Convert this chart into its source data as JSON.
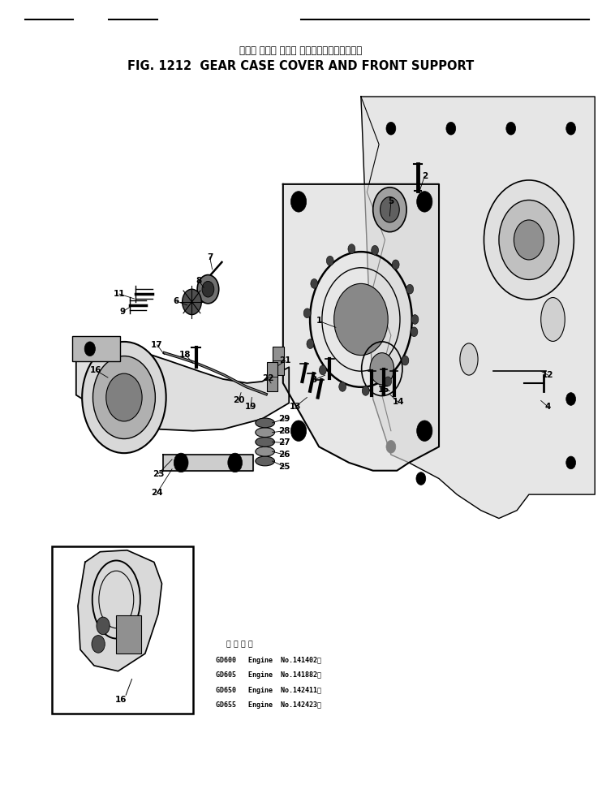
{
  "title_japanese": "ギヤー ケース カバー およびフロントサポート",
  "title_english": "FIG. 1212  GEAR CASE COVER AND FRONT SUPPORT",
  "bg_color": "#ffffff",
  "fig_width": 7.42,
  "fig_height": 9.83,
  "dpi": 100,
  "applicability_header": "適 用 車 種",
  "applicability_lines": [
    "GD600   Engine  No.141402～",
    "GD605   Engine  No.141882～",
    "GD650   Engine  No.142411～",
    "GD655   Engine  No.142423～"
  ]
}
